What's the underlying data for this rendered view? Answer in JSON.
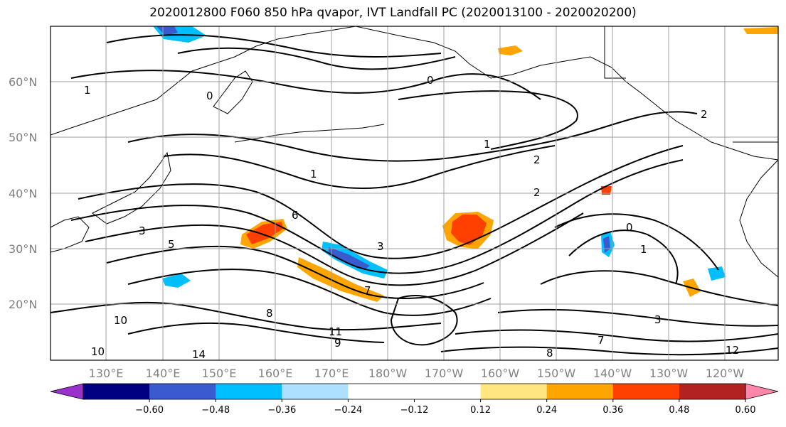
{
  "title": "2020012800 F060 850 hPa qvapor, IVT Landfall PC (2020013100 - 2020020200)",
  "map": {
    "lat_labels": [
      "60°N",
      "50°N",
      "40°N",
      "30°N",
      "20°N"
    ],
    "lon_labels": [
      "130°E",
      "140°E",
      "150°E",
      "160°E",
      "170°E",
      "180°W",
      "170°W",
      "160°W",
      "150°W",
      "140°W",
      "130°W",
      "120°W"
    ],
    "contour_labels": [
      "0",
      "1",
      "2",
      "3",
      "5",
      "6",
      "7",
      "8",
      "9",
      "10",
      "11",
      "12",
      "14"
    ],
    "fill_colors": {
      "negative": "#00BFFF",
      "strong_negative": "#3A5BD0",
      "positive": "#FFA500",
      "strong_positive": "#FF4000",
      "light_positive": "#FFE680"
    }
  },
  "colorbar": {
    "colors": [
      "#9932CC",
      "#000080",
      "#3A5BD0",
      "#00BFFF",
      "#ADDFFF",
      "#FFFFFF",
      "#FFFFFF",
      "#FFE680",
      "#FFA500",
      "#FF4000",
      "#B22222",
      "#FF88AA"
    ],
    "ticks": [
      "−0.60",
      "−0.48",
      "−0.36",
      "−0.24",
      "−0.12",
      "0.12",
      "0.24",
      "0.36",
      "0.48",
      "0.60"
    ]
  }
}
